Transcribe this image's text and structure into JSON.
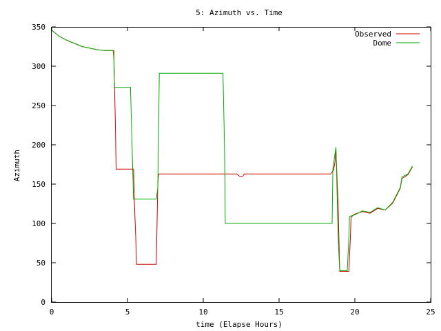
{
  "chart_data": {
    "type": "line",
    "title": "5: Azimuth vs. Time",
    "xlabel": "time (Elapse Hours)",
    "ylabel": "Azimuth",
    "xlim": [
      0,
      25
    ],
    "ylim": [
      0,
      350
    ],
    "xticks": [
      0,
      5,
      10,
      15,
      20,
      25
    ],
    "yticks": [
      0,
      50,
      100,
      150,
      200,
      250,
      300,
      350
    ],
    "legend_position": "top-right",
    "grid": false,
    "series": [
      {
        "name": "Observed",
        "color": "#cc0000",
        "points": [
          [
            0,
            346
          ],
          [
            0.5,
            338
          ],
          [
            1,
            333
          ],
          [
            1.5,
            329
          ],
          [
            2,
            325
          ],
          [
            2.5,
            323
          ],
          [
            3,
            321
          ],
          [
            3.5,
            320
          ],
          [
            4.1,
            320
          ],
          [
            4.15,
            270
          ],
          [
            4.2,
            230
          ],
          [
            4.25,
            169
          ],
          [
            5.4,
            169
          ],
          [
            5.45,
            130
          ],
          [
            5.55,
            80
          ],
          [
            5.6,
            48
          ],
          [
            6.9,
            48
          ],
          [
            7.0,
            150
          ],
          [
            7.05,
            163
          ],
          [
            12.2,
            163
          ],
          [
            12.4,
            160
          ],
          [
            12.6,
            160
          ],
          [
            12.7,
            163
          ],
          [
            18.4,
            163
          ],
          [
            18.6,
            168
          ],
          [
            18.7,
            180
          ],
          [
            18.75,
            195
          ],
          [
            18.8,
            170
          ],
          [
            18.9,
            120
          ],
          [
            19.0,
            39
          ],
          [
            19.6,
            39
          ],
          [
            19.7,
            80
          ],
          [
            19.75,
            108
          ],
          [
            20.0,
            112
          ],
          [
            20.5,
            115
          ],
          [
            21.0,
            113
          ],
          [
            21.5,
            119
          ],
          [
            22.0,
            117
          ],
          [
            22.5,
            126
          ],
          [
            23.0,
            145
          ],
          [
            23.1,
            157
          ],
          [
            23.5,
            162
          ],
          [
            23.8,
            172
          ]
        ]
      },
      {
        "name": "Dome",
        "color": "#00aa00",
        "points": [
          [
            0,
            346
          ],
          [
            0.5,
            338
          ],
          [
            1,
            333
          ],
          [
            1.5,
            329
          ],
          [
            2,
            325
          ],
          [
            2.5,
            323
          ],
          [
            3,
            321
          ],
          [
            3.5,
            320
          ],
          [
            4.05,
            320
          ],
          [
            4.1,
            310
          ],
          [
            4.15,
            273
          ],
          [
            5.2,
            273
          ],
          [
            5.3,
            200
          ],
          [
            5.4,
            131
          ],
          [
            6.9,
            131
          ],
          [
            7.0,
            145
          ],
          [
            7.1,
            291
          ],
          [
            11.3,
            291
          ],
          [
            11.4,
            200
          ],
          [
            11.45,
            100
          ],
          [
            18.5,
            100
          ],
          [
            18.55,
            170
          ],
          [
            18.7,
            190
          ],
          [
            18.75,
            197
          ],
          [
            18.8,
            160
          ],
          [
            18.9,
            80
          ],
          [
            19.0,
            40
          ],
          [
            19.5,
            40
          ],
          [
            19.6,
            80
          ],
          [
            19.65,
            109
          ],
          [
            20.0,
            111
          ],
          [
            20.5,
            116
          ],
          [
            21.0,
            114
          ],
          [
            21.5,
            120
          ],
          [
            22.0,
            117
          ],
          [
            22.5,
            127
          ],
          [
            23.0,
            146
          ],
          [
            23.1,
            159
          ],
          [
            23.5,
            163
          ],
          [
            23.8,
            173
          ]
        ]
      }
    ]
  }
}
